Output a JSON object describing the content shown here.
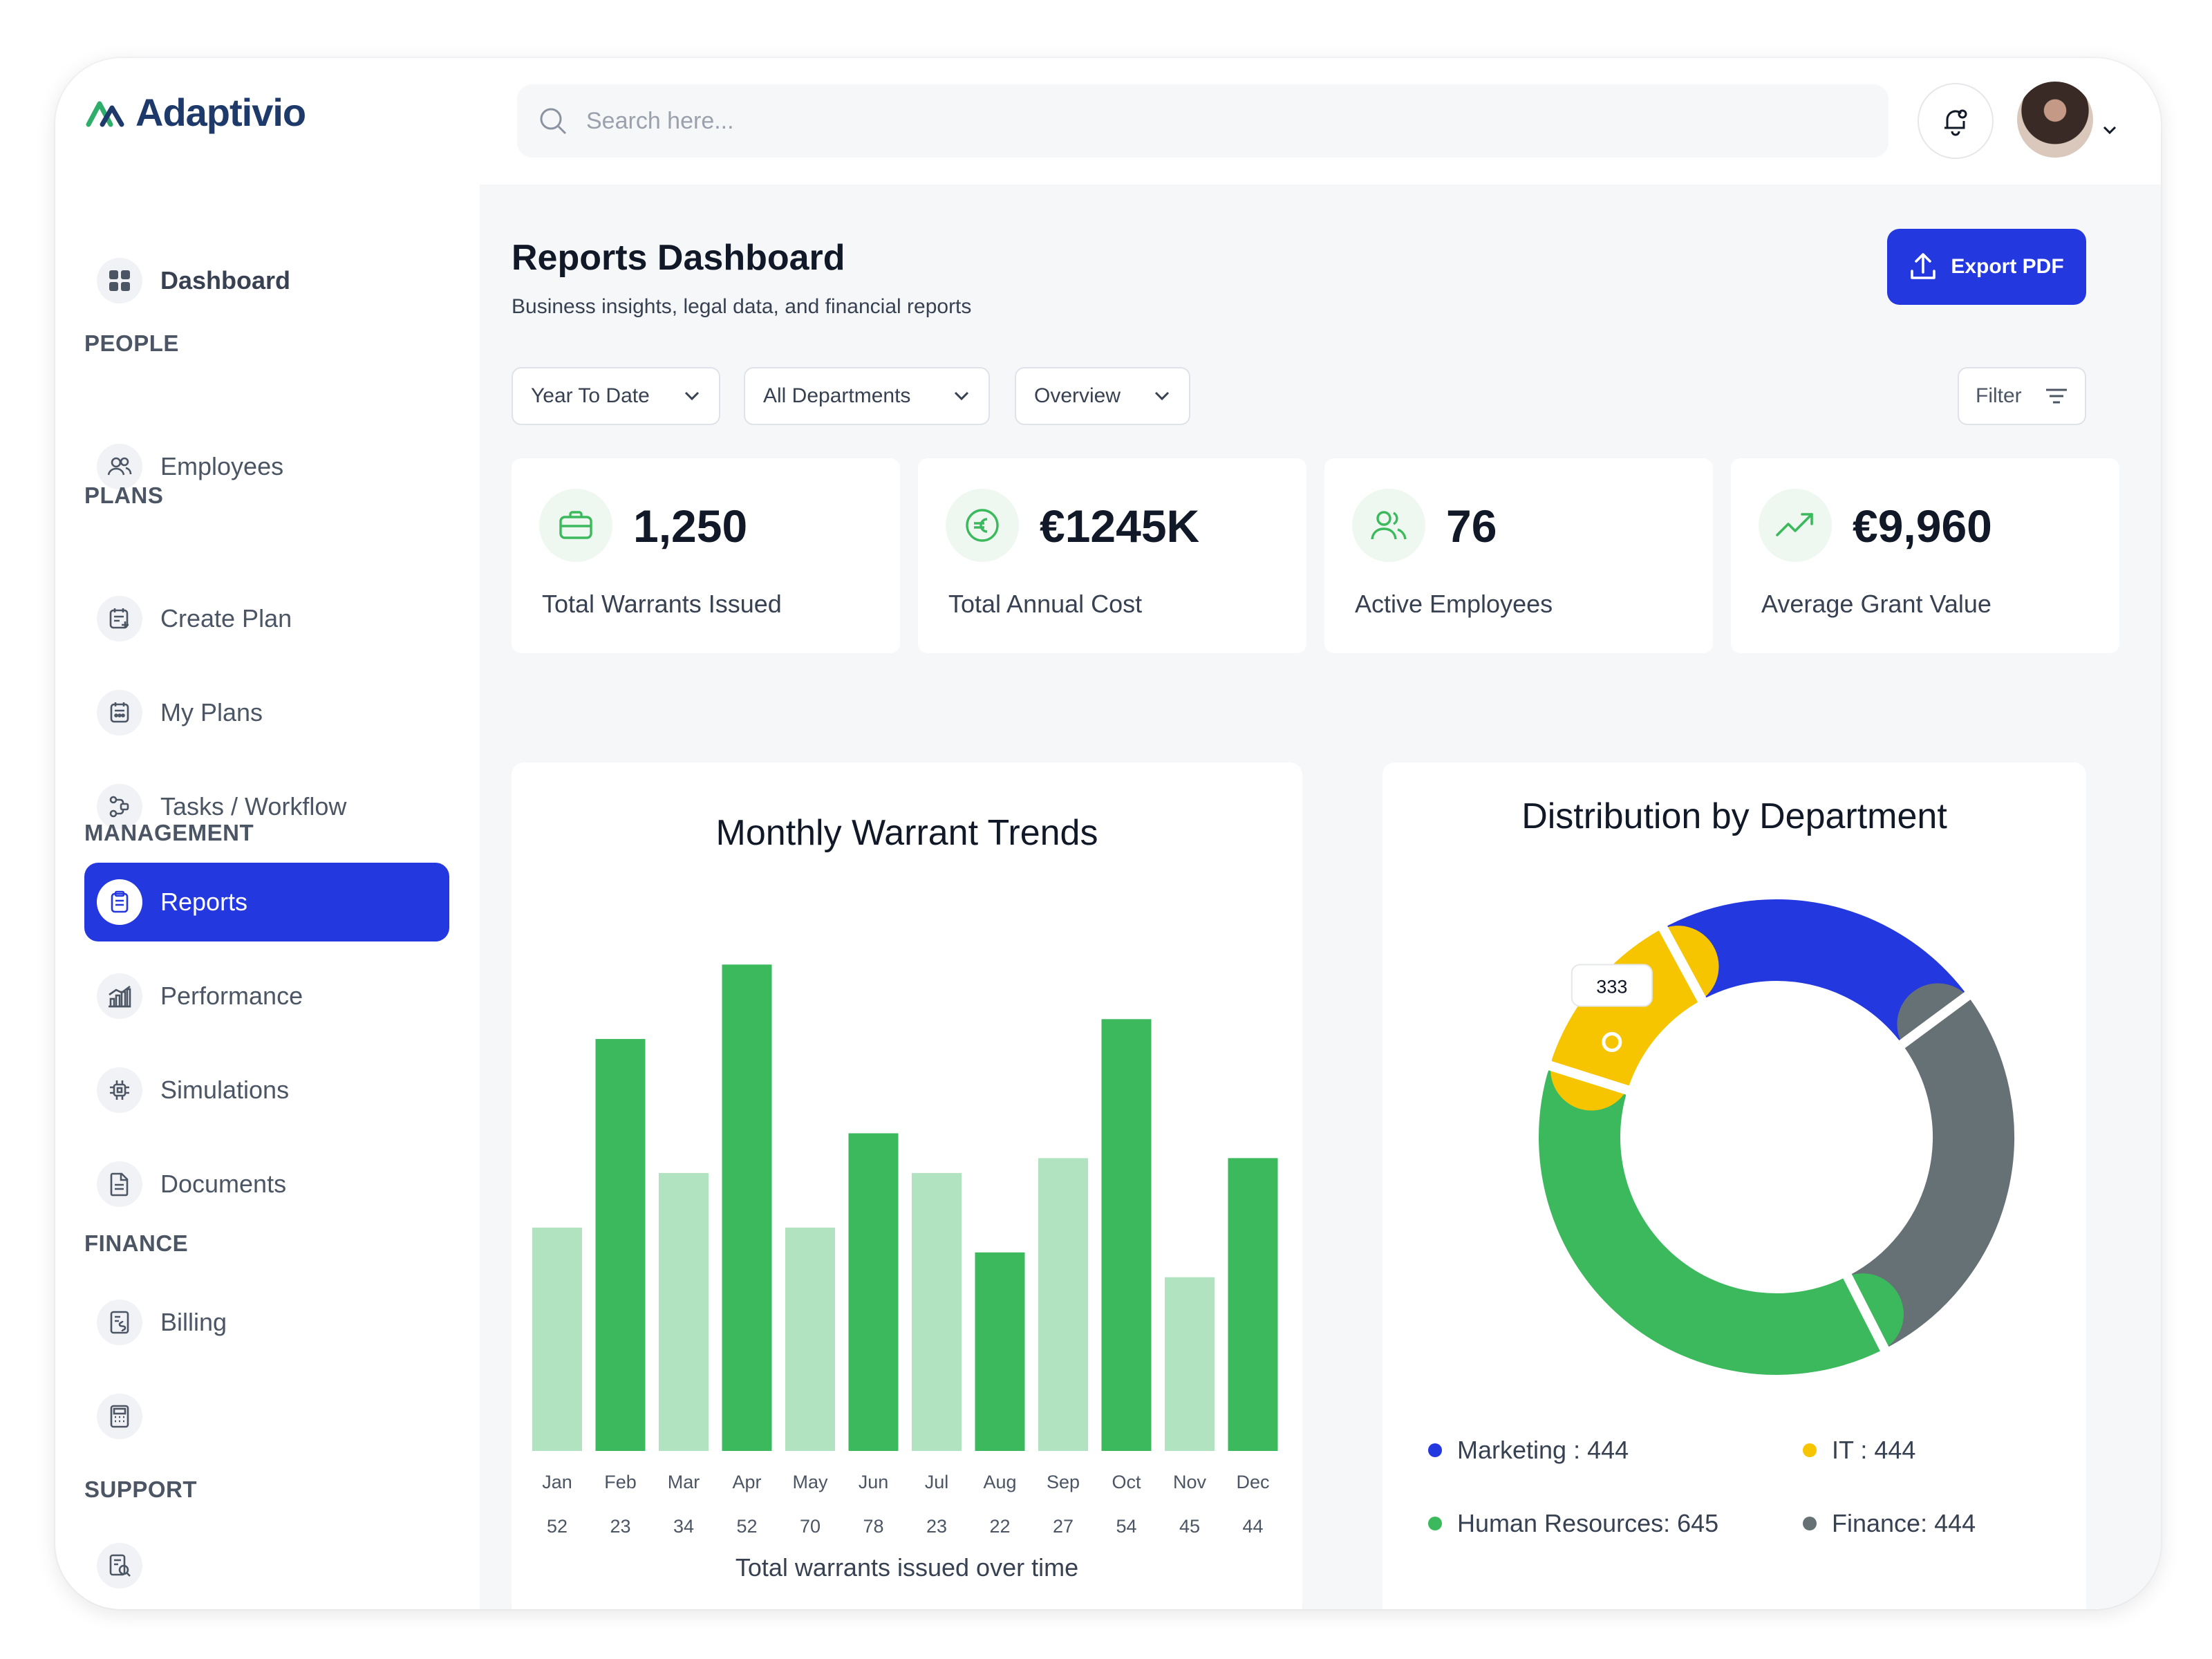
{
  "app": {
    "name": "Adaptivio",
    "brand_color": "#2438e0",
    "accent_green": "#3bb95c"
  },
  "sidebar": {
    "dashboard": {
      "label": "Dashboard",
      "icon": "grid-icon"
    },
    "sections": [
      {
        "label": "PEOPLE",
        "items": [
          {
            "label": "Employees",
            "icon": "users-icon"
          }
        ]
      },
      {
        "label": "PLANS",
        "items": [
          {
            "label": "Create Plan",
            "icon": "calendar-plus-icon"
          },
          {
            "label": "My Plans",
            "icon": "calendar-icon"
          },
          {
            "label": "Tasks / Workflow",
            "icon": "workflow-icon"
          }
        ]
      },
      {
        "label": "MANAGEMENT",
        "items": [
          {
            "label": "Reports",
            "icon": "clipboard-icon",
            "active": true
          },
          {
            "label": "Performance",
            "icon": "bar-chart-icon"
          },
          {
            "label": "Simulations",
            "icon": "chip-icon"
          },
          {
            "label": "Documents",
            "icon": "document-icon"
          }
        ]
      },
      {
        "label": "FINANCE",
        "items": [
          {
            "label": "Billing",
            "icon": "invoice-icon"
          },
          {
            "label": "Cost Calculator",
            "icon": "calculator-icon"
          }
        ]
      },
      {
        "label": "SUPPORT",
        "items": [
          {
            "label": "Knowledge Base",
            "icon": "book-search-icon"
          }
        ]
      }
    ]
  },
  "header": {
    "search_placeholder": "Search here..."
  },
  "page": {
    "title": "Reports Dashboard",
    "subtitle": "Business insights, legal data, and financial reports",
    "export_label": "Export PDF",
    "filters": {
      "period": "Year To Date",
      "department": "All Departments",
      "view": "Overview",
      "filter_label": "Filter"
    }
  },
  "stats": [
    {
      "value": "1,250",
      "label": "Total Warrants Issued",
      "icon": "briefcase-icon"
    },
    {
      "value": "€1245K",
      "label": "Total Annual Cost",
      "icon": "euro-icon"
    },
    {
      "value": "76",
      "label": "Active Employees",
      "icon": "users-icon"
    },
    {
      "value": "€9,960",
      "label": "Average Grant Value",
      "icon": "trend-up-icon"
    }
  ],
  "chart_data": [
    {
      "type": "bar",
      "title": "Monthly Warrant Trends",
      "xlabel": "Total warrants issued over time",
      "categories": [
        "Jan",
        "Feb",
        "Mar",
        "Apr",
        "May",
        "Jun",
        "Jul",
        "Aug",
        "Sep",
        "Oct",
        "Nov",
        "Dec"
      ],
      "values": [
        52,
        23,
        34,
        52,
        70,
        78,
        23,
        22,
        27,
        54,
        45,
        44
      ],
      "bar_heights": [
        45,
        83,
        56,
        98,
        45,
        64,
        56,
        40,
        59,
        87,
        35,
        59
      ],
      "highlight": [
        false,
        true,
        false,
        true,
        false,
        true,
        false,
        true,
        false,
        true,
        false,
        true
      ],
      "colors": {
        "highlight": "#3bb95c",
        "muted": "#b2e3c0"
      }
    },
    {
      "type": "pie",
      "title": "Distribution by Department",
      "slices": [
        {
          "label": "Marketing",
          "value": 444,
          "legend": "Marketing : 444",
          "color": "#2438e0"
        },
        {
          "label": "Finance",
          "value": 444,
          "legend": "Finance: 444",
          "color": "#667175"
        },
        {
          "label": "Human Resources",
          "value": 645,
          "legend": "Human Resources: 645",
          "color": "#3bb95c"
        },
        {
          "label": "IT",
          "value": 444,
          "legend": "IT : 444",
          "color": "#f6c500"
        }
      ],
      "tooltip": "333"
    }
  ]
}
